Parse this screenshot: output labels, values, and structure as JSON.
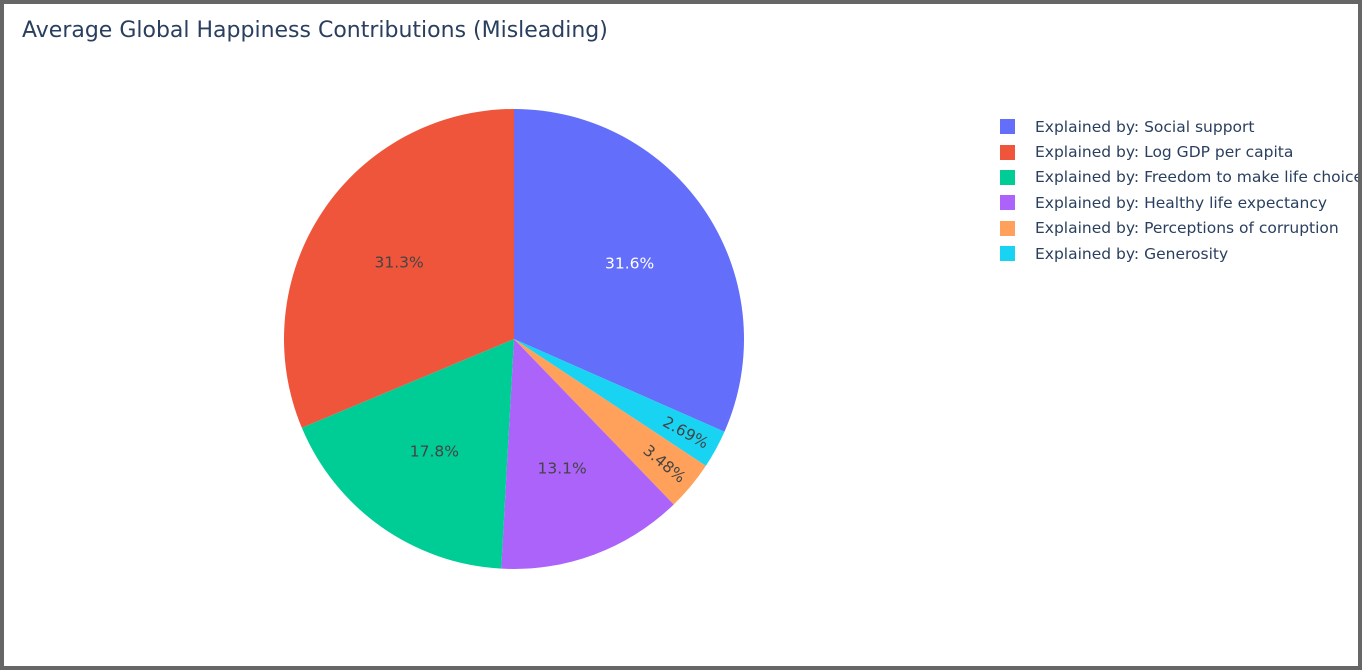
{
  "title": "Average Global Happiness Contributions (Misleading)",
  "chart_data": {
    "type": "pie",
    "title": "Average Global Happiness Contributions (Misleading)",
    "legend_position": "top-right",
    "slices": [
      {
        "label": "Explained by: Social support",
        "percent": 31.6,
        "percent_text": "31.6%",
        "color": "#636efa",
        "text_color": "#ffffff"
      },
      {
        "label": "Explained by: Log GDP per capita",
        "percent": 31.3,
        "percent_text": "31.3%",
        "color": "#ef553b",
        "text_color": "#444444"
      },
      {
        "label": "Explained by: Freedom to make life choices",
        "percent": 17.8,
        "percent_text": "17.8%",
        "color": "#00cc96",
        "text_color": "#444444"
      },
      {
        "label": "Explained by: Healthy life expectancy",
        "percent": 13.1,
        "percent_text": "13.1%",
        "color": "#ab63fa",
        "text_color": "#444444"
      },
      {
        "label": "Explained by: Perceptions of corruption",
        "percent": 3.48,
        "percent_text": "3.48%",
        "color": "#ffa15a",
        "text_color": "#444444"
      },
      {
        "label": "Explained by: Generosity",
        "percent": 2.69,
        "percent_text": "2.69%",
        "color": "#19d3f3",
        "text_color": "#444444"
      }
    ],
    "slice_order_clockwise_from_top": [
      0,
      5,
      4,
      3,
      2,
      1
    ]
  }
}
